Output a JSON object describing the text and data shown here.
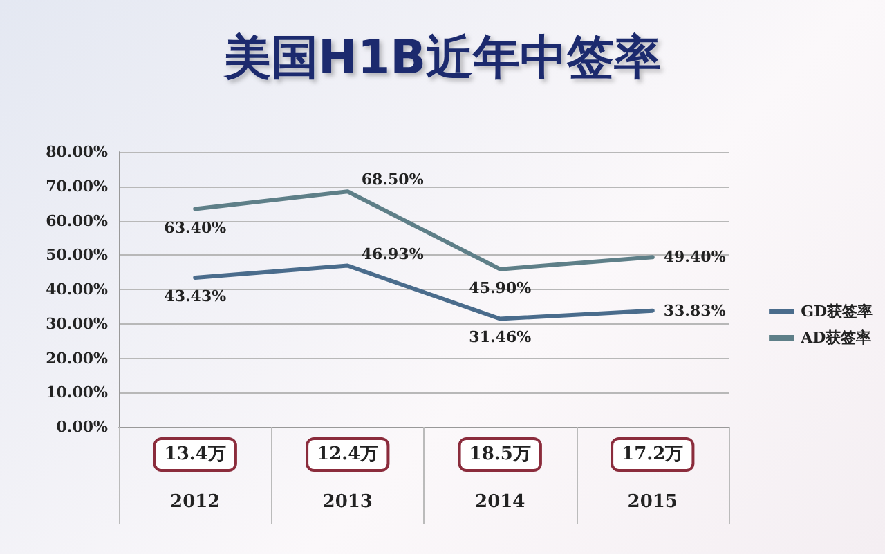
{
  "chart_data": {
    "type": "line",
    "title": "美国H1B近年中签率",
    "categories": [
      "2012",
      "2013",
      "2014",
      "2015"
    ],
    "series": [
      {
        "name": "GD获签率",
        "color": "#4a6c8c",
        "values": [
          43.43,
          46.93,
          31.46,
          33.83
        ],
        "value_labels": [
          "43.43%",
          "46.93%",
          "31.46%",
          "33.83%"
        ]
      },
      {
        "name": "AD获签率",
        "color": "#5e7f88",
        "values": [
          63.4,
          68.5,
          45.9,
          49.4
        ],
        "value_labels": [
          "63.40%",
          "68.50%",
          "45.90%",
          "49.40%"
        ]
      }
    ],
    "ylim": [
      0,
      80
    ],
    "yticks": [
      {
        "value": 0,
        "label": "0.00%"
      },
      {
        "value": 10,
        "label": "10.00%"
      },
      {
        "value": 20,
        "label": "20.00%"
      },
      {
        "value": 30,
        "label": "30.00%"
      },
      {
        "value": 40,
        "label": "40.00%"
      },
      {
        "value": 50,
        "label": "50.00%"
      },
      {
        "value": 60,
        "label": "60.00%"
      },
      {
        "value": 70,
        "label": "70.00%"
      },
      {
        "value": 80,
        "label": "80.00%"
      }
    ],
    "grid": "y",
    "legend": "right",
    "marker": "none",
    "line_style": "solid",
    "annotations": [
      "13.4万",
      "12.4万",
      "18.5万",
      "17.2万"
    ]
  }
}
